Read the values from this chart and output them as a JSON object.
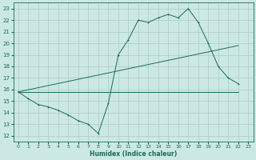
{
  "title": "",
  "xlabel": "Humidex (Indice chaleur)",
  "bg_color": "#cce8e4",
  "grid_color": "#aaccca",
  "line_color": "#1a6b5a",
  "xlim": [
    -0.5,
    23.5
  ],
  "ylim": [
    11.5,
    23.5
  ],
  "xticks": [
    0,
    1,
    2,
    3,
    4,
    5,
    6,
    7,
    8,
    9,
    10,
    11,
    12,
    13,
    14,
    15,
    16,
    17,
    18,
    19,
    20,
    21,
    22,
    23
  ],
  "yticks": [
    12,
    13,
    14,
    15,
    16,
    17,
    18,
    19,
    20,
    21,
    22,
    23
  ],
  "line1_x": [
    0,
    1,
    2,
    3,
    4,
    5,
    6,
    7,
    8,
    9,
    10,
    11,
    12,
    13,
    14,
    15,
    16,
    17,
    18,
    19,
    20,
    21,
    22
  ],
  "line1_y": [
    15.8,
    15.2,
    14.7,
    14.5,
    14.2,
    13.8,
    13.3,
    13.0,
    12.2,
    14.8,
    19.0,
    20.3,
    22.0,
    21.8,
    22.2,
    22.5,
    22.2,
    23.0,
    21.8,
    20.0,
    18.0,
    17.0,
    16.5
  ],
  "line2_x": [
    0,
    22
  ],
  "line2_y": [
    15.8,
    19.8
  ],
  "line3_x": [
    0,
    22
  ],
  "line3_y": [
    15.8,
    15.8
  ]
}
